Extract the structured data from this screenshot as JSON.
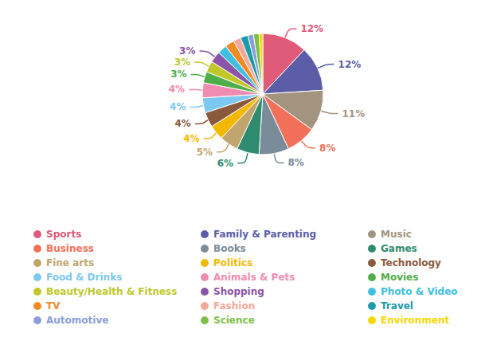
{
  "chart_data": {
    "type": "pie",
    "categories": [
      "Sports",
      "Family & Parenting",
      "Music",
      "Business",
      "Books",
      "Games",
      "Fine arts",
      "Politics",
      "Technology",
      "Food & Drinks",
      "Animals & Pets",
      "Movies",
      "Beauty/Health & Fitness",
      "Shopping",
      "Photo & Video",
      "TV",
      "Fashion",
      "Travel",
      "Automotive",
      "Science",
      "Environment"
    ],
    "values": [
      12,
      12,
      11,
      8,
      8,
      6,
      5,
      4,
      4,
      4,
      4,
      3,
      3,
      3,
      2.5,
      2.5,
      2,
      2,
      1.5,
      1.5,
      1
    ],
    "value_labels": [
      "12%",
      "12%",
      "11%",
      "8%",
      "8%",
      "6%",
      "5%",
      "4%",
      "4%",
      "4%",
      "4%",
      "3%",
      "3%",
      "3%",
      null,
      null,
      null,
      null,
      null,
      null,
      null
    ],
    "colors": [
      "#e05a7a",
      "#5b5ea6",
      "#a39480",
      "#f0705a",
      "#7a8c99",
      "#2e8b6e",
      "#c2a56e",
      "#f5b800",
      "#8b5a3c",
      "#7cc8f0",
      "#f08cb0",
      "#4fae4a",
      "#c0c829",
      "#8a55a8",
      "#40c0e0",
      "#f08a24",
      "#f4a89a",
      "#1a9aaa",
      "#8a9ed8",
      "#7bc043",
      "#f5d800"
    ],
    "data_labels": true,
    "legend": "bottom"
  }
}
